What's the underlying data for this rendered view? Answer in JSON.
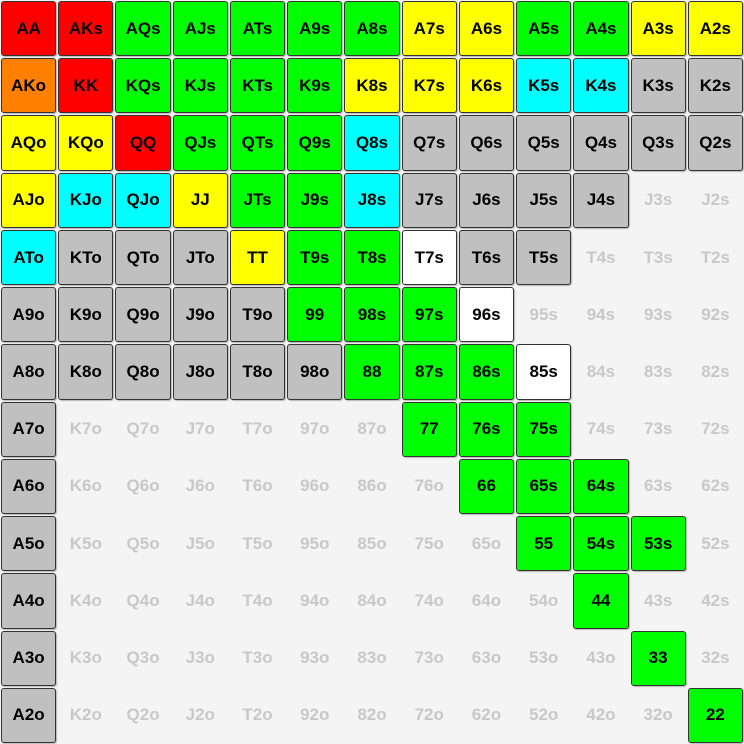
{
  "ranks": [
    "A",
    "K",
    "Q",
    "J",
    "T",
    "9",
    "8",
    "7",
    "6",
    "5",
    "4",
    "3",
    "2"
  ],
  "colors": {
    "R": "#ff0000",
    "O": "#ff8000",
    "G": "#00ff00",
    "Y": "#ffff00",
    "C": "#00ffff",
    "S": "#c0c0c0",
    "W": "#ffffff",
    "E": "#f4f4f4",
    "empty_text": "#c8c8c8"
  },
  "legend": {
    "R": "red",
    "O": "orange",
    "G": "green",
    "Y": "yellow",
    "C": "cyan",
    "S": "gray",
    "W": "white",
    "E": "empty"
  },
  "grid": [
    [
      "R",
      "R",
      "G",
      "G",
      "G",
      "G",
      "G",
      "Y",
      "Y",
      "G",
      "G",
      "Y",
      "Y"
    ],
    [
      "O",
      "R",
      "G",
      "G",
      "G",
      "G",
      "Y",
      "Y",
      "Y",
      "C",
      "C",
      "S",
      "S"
    ],
    [
      "Y",
      "Y",
      "R",
      "G",
      "G",
      "G",
      "C",
      "S",
      "S",
      "S",
      "S",
      "S",
      "S"
    ],
    [
      "Y",
      "C",
      "C",
      "Y",
      "G",
      "G",
      "C",
      "S",
      "S",
      "S",
      "S",
      "E",
      "E"
    ],
    [
      "C",
      "S",
      "S",
      "S",
      "Y",
      "G",
      "G",
      "W",
      "S",
      "S",
      "E",
      "E",
      "E"
    ],
    [
      "S",
      "S",
      "S",
      "S",
      "S",
      "G",
      "G",
      "G",
      "W",
      "E",
      "E",
      "E",
      "E"
    ],
    [
      "S",
      "S",
      "S",
      "S",
      "S",
      "S",
      "G",
      "G",
      "G",
      "W",
      "E",
      "E",
      "E"
    ],
    [
      "S",
      "E",
      "E",
      "E",
      "E",
      "E",
      "E",
      "G",
      "G",
      "G",
      "E",
      "E",
      "E"
    ],
    [
      "S",
      "E",
      "E",
      "E",
      "E",
      "E",
      "E",
      "E",
      "G",
      "G",
      "G",
      "E",
      "E"
    ],
    [
      "S",
      "E",
      "E",
      "E",
      "E",
      "E",
      "E",
      "E",
      "E",
      "G",
      "G",
      "G",
      "E"
    ],
    [
      "S",
      "E",
      "E",
      "E",
      "E",
      "E",
      "E",
      "E",
      "E",
      "E",
      "G",
      "E",
      "E"
    ],
    [
      "S",
      "E",
      "E",
      "E",
      "E",
      "E",
      "E",
      "E",
      "E",
      "E",
      "E",
      "G",
      "E"
    ],
    [
      "S",
      "E",
      "E",
      "E",
      "E",
      "E",
      "E",
      "E",
      "E",
      "E",
      "E",
      "E",
      "G"
    ]
  ]
}
